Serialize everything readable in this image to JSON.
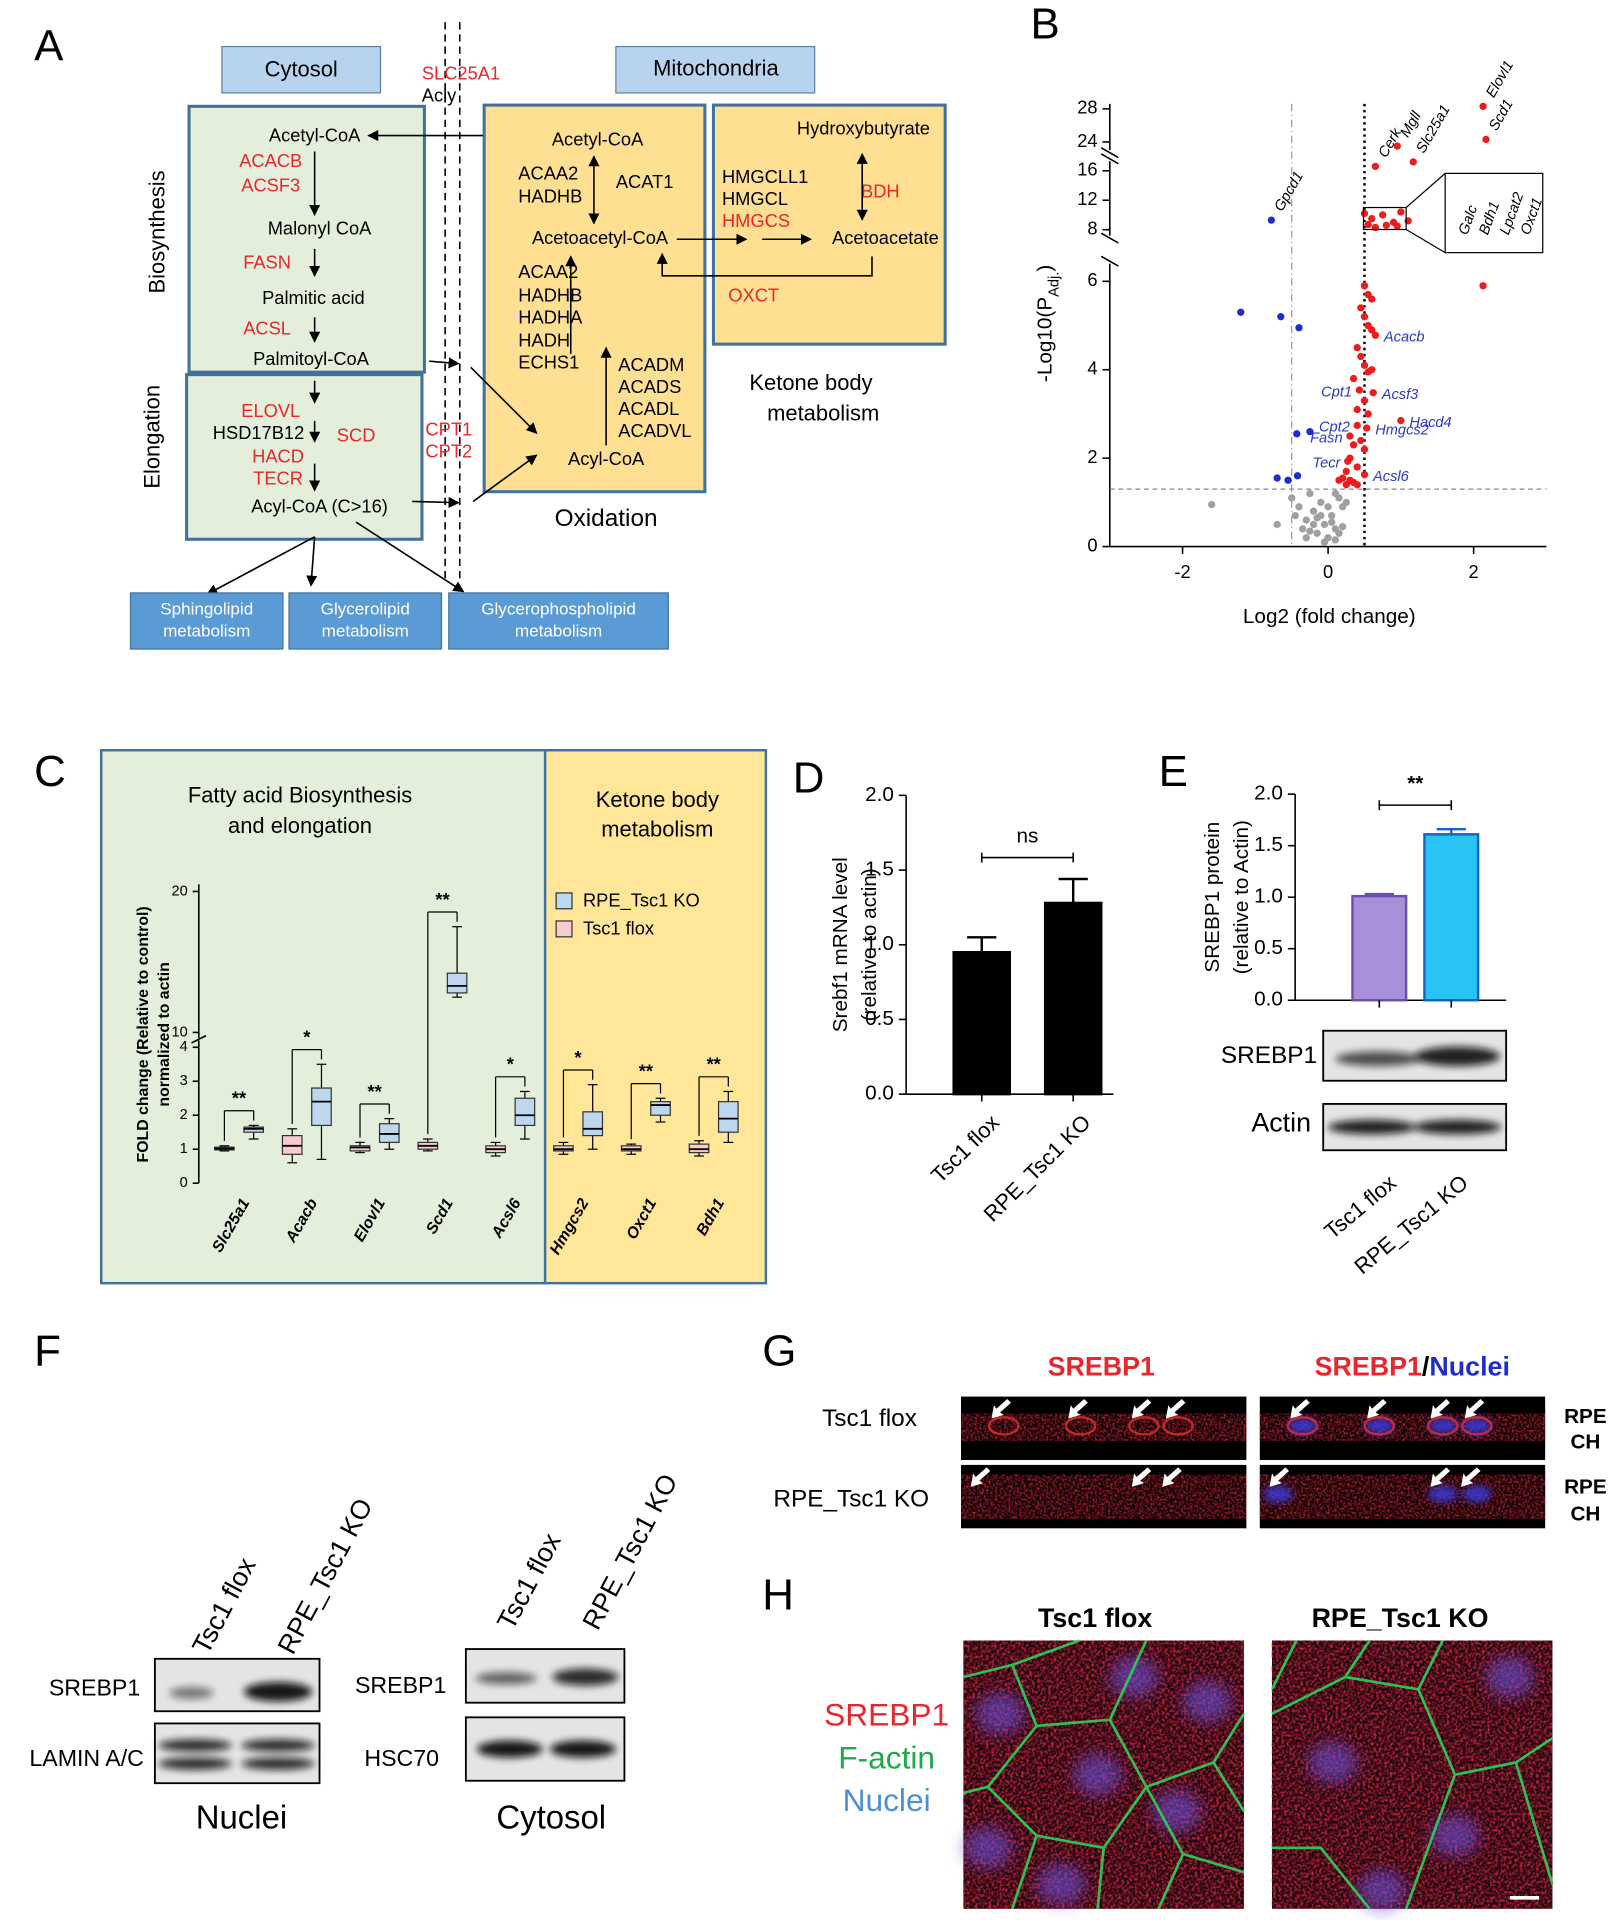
{
  "figure": {
    "panel_labels": [
      "A",
      "B",
      "C",
      "D",
      "E",
      "F",
      "G",
      "H"
    ]
  },
  "pathway": {
    "headers": [
      "Cytosol",
      "Mitochondria"
    ],
    "side_labels": [
      "Biosynthesis",
      "Elongation"
    ],
    "cytosol": [
      {
        "text": "Acetyl-CoA",
        "color": "#000000"
      },
      {
        "text": "ACACB",
        "color": "#e8262b"
      },
      {
        "text": "ACSF3",
        "color": "#e8262b"
      },
      {
        "text": "Malonyl CoA",
        "color": "#000000"
      },
      {
        "text": "FASN",
        "color": "#e8262b"
      },
      {
        "text": "Palmitic acid",
        "color": "#000000"
      },
      {
        "text": "ACSL",
        "color": "#e8262b"
      },
      {
        "text": "Palmitoyl-CoA",
        "color": "#000000"
      },
      {
        "text": "ELOVL",
        "color": "#e8262b"
      },
      {
        "text": "HSD17B12",
        "color": "#000000"
      },
      {
        "text": "SCD",
        "color": "#e8262b"
      },
      {
        "text": "HACD",
        "color": "#e8262b"
      },
      {
        "text": "TECR",
        "color": "#e8262b"
      },
      {
        "text": "Acyl-CoA (C>16)",
        "color": "#000000"
      }
    ],
    "membrane": [
      {
        "text": "SLC25A1",
        "color": "#e8262b"
      },
      {
        "text": "Acly",
        "color": "#000000"
      },
      {
        "text": "CPT1",
        "color": "#e8262b"
      },
      {
        "text": "CPT2",
        "color": "#e8262b"
      }
    ],
    "mito": [
      {
        "text": "Acetyl-CoA",
        "color": "#000000"
      },
      {
        "text": "ACAA2",
        "color": "#000000"
      },
      {
        "text": "HADHB",
        "color": "#000000"
      },
      {
        "text": "ACAT1",
        "color": "#000000"
      },
      {
        "text": "Acetoacetyl-CoA",
        "color": "#000000"
      },
      {
        "text": "ACAA2",
        "color": "#000000"
      },
      {
        "text": "HADHB",
        "color": "#000000"
      },
      {
        "text": "HADHA",
        "color": "#000000"
      },
      {
        "text": "HADH",
        "color": "#000000"
      },
      {
        "text": "ECHS1",
        "color": "#000000"
      },
      {
        "text": "ACADM",
        "color": "#000000"
      },
      {
        "text": "ACADS",
        "color": "#000000"
      },
      {
        "text": "ACADL",
        "color": "#000000"
      },
      {
        "text": "ACADVL",
        "color": "#000000"
      },
      {
        "text": "Acyl-CoA",
        "color": "#000000"
      }
    ],
    "ketone": [
      {
        "text": "Hydroxybutyrate",
        "color": "#000000"
      },
      {
        "text": "HMGCLL1",
        "color": "#000000"
      },
      {
        "text": "HMGCL",
        "color": "#000000"
      },
      {
        "text": "HMGCS",
        "color": "#e8262b"
      },
      {
        "text": "BDH",
        "color": "#e8262b"
      },
      {
        "text": "Acetoacetate",
        "color": "#000000"
      },
      {
        "text": "OXCT",
        "color": "#e8262b"
      }
    ],
    "oxidation": "Oxidation",
    "ketone_title": [
      "Ketone body",
      "metabolism"
    ],
    "outputs": [
      [
        "Sphingolipid",
        "metabolism"
      ],
      [
        "Glycerolipid",
        "metabolism"
      ],
      [
        "Glycerophospholipid",
        "metabolism"
      ]
    ]
  },
  "chart_data": [
    {
      "type": "scatter",
      "xlabel": "Log2 (fold change)",
      "ylabel": [
        "-Log10(P",
        "Adj.",
        ")"
      ],
      "xlim": [
        -3,
        3
      ],
      "ysegments": [
        [
          0,
          6.4
        ],
        [
          7.2,
          17.3
        ],
        [
          23,
          28.6
        ]
      ],
      "xticks": [
        -2,
        0,
        2
      ],
      "yticks": [
        0,
        2,
        4,
        6,
        8,
        12,
        16,
        24,
        28
      ],
      "hline": 1.3,
      "vlines": [
        -0.5,
        0.5
      ],
      "series": [
        {
          "color": "#ee1c1c",
          "x": [
            2.13,
            2.17,
            0.95,
            1.17,
            0.65,
            0.5,
            0.6,
            0.75,
            0.9,
            1.0,
            0.55,
            0.8,
            0.95,
            1.1,
            0.65,
            2.13,
            0.5,
            0.55,
            0.6,
            0.45,
            0.5,
            0.55,
            0.6,
            0.65,
            0.4,
            0.45,
            0.5,
            0.55,
            0.6,
            0.35,
            0.43,
            0.62,
            0.5,
            0.4,
            0.55,
            1.0,
            0.4,
            0.53,
            0.3,
            0.45,
            0.35,
            0.5,
            0.3,
            0.27,
            0.4,
            0.25,
            0.5,
            0.2,
            0.3,
            0.35,
            0.15,
            0.25,
            0.4
          ],
          "values": [
            28.3,
            24.3,
            23.5,
            17.2,
            16.6,
            10.2,
            9.5,
            10,
            9,
            10.4,
            8.7,
            8.6,
            8.5,
            9.2,
            8.3,
            5.9,
            5.9,
            5.7,
            5.6,
            5.4,
            5.2,
            5.0,
            4.9,
            4.78,
            4.5,
            4.3,
            4.1,
            3.95,
            4.0,
            3.8,
            3.54,
            3.48,
            3.3,
            3.1,
            3.0,
            2.85,
            2.74,
            2.68,
            2.5,
            2.4,
            2.3,
            2.2,
            2.0,
            1.93,
            1.8,
            1.7,
            1.63,
            1.55,
            1.5,
            1.45,
            1.5,
            1.4,
            1.4
          ],
          "labels": [
            "Elovl1",
            "Scd1",
            "Mgll",
            "Slc25a1",
            "Cerk",
            null,
            null,
            null,
            null,
            null,
            null,
            null,
            null,
            null,
            null,
            null,
            null,
            null,
            null,
            null,
            null,
            null,
            null,
            "Acacb",
            null,
            null,
            null,
            null,
            null,
            null,
            "Cpt1",
            "Acsf3",
            null,
            null,
            null,
            "Hacd4",
            "Cpt2",
            "Hmgcs2",
            "Fasn",
            null,
            null,
            null,
            null,
            "Tecr",
            null,
            null,
            "Acsl6",
            null,
            null,
            null,
            null,
            null,
            null
          ]
        },
        {
          "color": "#1f2ccf",
          "x": [
            -1.2,
            -0.65,
            -0.4,
            -0.78,
            -0.43,
            -0.25,
            -0.7,
            -0.55,
            -0.42
          ],
          "values": [
            5.3,
            5.2,
            4.95,
            9.3,
            2.55,
            2.6,
            1.55,
            1.5,
            1.6
          ],
          "labels": [
            null,
            null,
            null,
            "Gpcd1",
            null,
            null,
            null,
            null,
            null
          ]
        },
        {
          "color": "#a0a0a0",
          "x": [
            -1.6,
            -0.7,
            -0.5,
            -0.45,
            -0.4,
            -0.35,
            -0.3,
            -0.25,
            -0.2,
            -0.15,
            -0.1,
            -0.05,
            0,
            0.05,
            0.1,
            0.15,
            0.2,
            -0.3,
            -0.2,
            -0.1,
            0,
            0.1,
            0.15,
            -0.05,
            0.05,
            -0.15,
            0.1,
            0.2,
            0.25,
            -0.25
          ],
          "values": [
            0.95,
            0.5,
            1.1,
            0.7,
            0.9,
            0.4,
            0.6,
            1.2,
            0.8,
            0.3,
            1.0,
            0.5,
            0.2,
            0.7,
            0.4,
            1.1,
            0.9,
            0.2,
            0.5,
            0.7,
            0.9,
            1.2,
            0.3,
            0.1,
            0.55,
            0.65,
            0.15,
            0.45,
            1.0,
            0.35
          ],
          "labels": [
            null,
            null,
            null,
            null,
            null,
            null,
            null,
            null,
            null,
            null,
            null,
            null,
            null,
            null,
            null,
            null,
            null,
            null,
            null,
            null,
            null,
            null,
            null,
            null,
            null,
            null,
            null,
            null,
            null,
            null
          ]
        }
      ],
      "callout": [
        "Galc",
        "Bdh1",
        "Lpcat2",
        "Oxct1"
      ]
    },
    {
      "type": "box",
      "titles": [
        [
          "Fatty acid Biosynthesis",
          "and elongation"
        ],
        [
          "Ketone body",
          "metabolism"
        ]
      ],
      "ylabel": [
        "FOLD change (Relative to control)",
        "normalized to actin"
      ],
      "categories": [
        "Slc25a1",
        "Acacb",
        "Elovl1",
        "Scd1",
        "Acsl6",
        "Hmgcs2",
        "Oxct1",
        "Bdh1"
      ],
      "ysegments": [
        [
          0,
          4.2
        ],
        [
          9.6,
          20.5
        ]
      ],
      "yticks": [
        0,
        1,
        2,
        3,
        4,
        10,
        20
      ],
      "series": [
        {
          "name": "RPE_Tsc1 KO",
          "color": "#bdd7ee",
          "min": [
            1.3,
            0.7,
            1.0,
            12.5,
            1.3,
            1.0,
            1.8,
            1.2
          ],
          "q1": [
            1.5,
            1.7,
            1.2,
            12.8,
            1.7,
            1.4,
            2.0,
            1.5
          ],
          "median": [
            1.6,
            2.4,
            1.45,
            13.3,
            2.0,
            1.6,
            2.3,
            1.9
          ],
          "q3": [
            1.65,
            2.8,
            1.75,
            14.2,
            2.5,
            2.1,
            2.4,
            2.4
          ],
          "max": [
            1.7,
            3.5,
            1.9,
            17.5,
            2.7,
            2.9,
            2.5,
            2.7
          ]
        },
        {
          "name": "Tsc1 flox",
          "color": "#f8cbd0",
          "min": [
            0.95,
            0.6,
            0.9,
            0.95,
            0.8,
            0.85,
            0.85,
            0.8
          ],
          "q1": [
            0.98,
            0.85,
            0.95,
            1.0,
            0.9,
            0.95,
            0.95,
            0.9
          ],
          "median": [
            1.02,
            1.1,
            1.05,
            1.1,
            1.0,
            1.0,
            1.0,
            1.0
          ],
          "q3": [
            1.06,
            1.4,
            1.1,
            1.2,
            1.1,
            1.1,
            1.1,
            1.15
          ],
          "max": [
            1.1,
            1.6,
            1.2,
            1.3,
            1.2,
            1.2,
            1.15,
            1.25
          ]
        }
      ],
      "significance": [
        "**",
        "*",
        "**",
        "**",
        "*",
        "*",
        "**",
        "**"
      ]
    },
    {
      "type": "bar",
      "categories": [
        "Tsc1 flox",
        "RPE_Tsc1 KO"
      ],
      "values": [
        0.95,
        1.28
      ],
      "errors": [
        0.1,
        0.16
      ],
      "colors": [
        "#000000",
        "#000000"
      ],
      "edge_colors": [
        "#000000",
        "#000000"
      ],
      "ylim": [
        0,
        2
      ],
      "yticks": [
        {
          "value": 0,
          "label": "0.0"
        },
        {
          "value": 0.5,
          "label": "0.5"
        },
        {
          "value": 1,
          "label": "1.0"
        },
        {
          "value": 1.5,
          "label": "1.5"
        },
        {
          "value": 2,
          "label": "2.0"
        }
      ],
      "ylabel": [
        "Srebf1 mRNA level",
        "(relative to actin)"
      ],
      "annotation": "ns"
    },
    {
      "type": "bar",
      "categories": [
        "Tsc1 flox",
        "RPE_Tsc1  KO"
      ],
      "values": [
        1.01,
        1.61
      ],
      "errors": [
        0.02,
        0.05
      ],
      "colors": [
        "#a98ed8",
        "#29c3f6"
      ],
      "edge_colors": [
        "#6a4fb0",
        "#1565c0"
      ],
      "ylim": [
        0,
        2
      ],
      "yticks": [
        {
          "value": 0,
          "label": "0.0"
        },
        {
          "value": 0.5,
          "label": "0.5"
        },
        {
          "value": 1,
          "label": "1.0"
        },
        {
          "value": 1.5,
          "label": "1.5"
        },
        {
          "value": 2,
          "label": "2.0"
        }
      ],
      "ylabel": [
        "SREBP1 protein",
        "(relative to Actin)"
      ],
      "annotation": "**",
      "blots": [
        "SREBP1",
        "Actin"
      ]
    }
  ],
  "panel_f": {
    "lanes": [
      "Tsc1 flox",
      "RPE_Tsc1 KO"
    ],
    "nuclei_blots": [
      "SREBP1",
      "LAMIN A/C"
    ],
    "cytosol_blots": [
      "SREBP1",
      "HSC70"
    ],
    "fractions": [
      "Nuclei",
      "Cytosol"
    ]
  },
  "panel_g": {
    "columns": [
      "SREBP1",
      [
        "SREBP1",
        "/",
        "Nuclei"
      ]
    ],
    "rows": [
      "Tsc1 flox",
      "RPE_Tsc1 KO"
    ],
    "layers": [
      "RPE",
      "CH"
    ]
  },
  "panel_h": {
    "columns": [
      "Tsc1 flox",
      "RPE_Tsc1 KO"
    ],
    "stains": [
      {
        "text": "SREBP1",
        "color": "#e8262b"
      },
      {
        "text": "F-actin",
        "color": "#22a84a"
      },
      {
        "text": "Nuclei",
        "color": "#4a90d9"
      }
    ]
  }
}
